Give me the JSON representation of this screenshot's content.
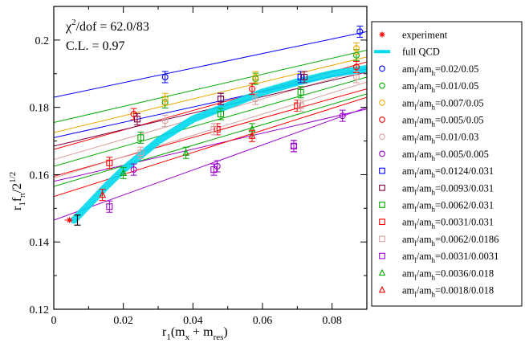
{
  "chart_data": {
    "type": "scatter",
    "title": "",
    "xlabel": "r1(mx + mres)",
    "ylabel": "r1 fπ/2^1/2",
    "xlim": [
      0,
      0.09
    ],
    "ylim": [
      0.12,
      0.21
    ],
    "xticks": [
      0,
      0.02,
      0.04,
      0.06,
      0.08
    ],
    "yticks": [
      0.12,
      0.14,
      0.16,
      0.18,
      0.2
    ],
    "xtick_labels": [
      "0",
      "0.02",
      "0.04",
      "0.06",
      "0.08"
    ],
    "ytick_labels": [
      "0.12",
      "0.14",
      "0.16",
      "0.18",
      "0.2"
    ],
    "annotations": [
      "χ²/dof = 62.0/83",
      "C.L. = 0.97"
    ],
    "experiment": {
      "name": "experiment",
      "color": "#ff0000",
      "x": 0.0045,
      "y": 0.1465
    },
    "full_qcd": {
      "name": "full QCD",
      "color": "#00d8ec",
      "x": [
        0.0058,
        0.01,
        0.015,
        0.02,
        0.03,
        0.04,
        0.05,
        0.06,
        0.07,
        0.08,
        0.09
      ],
      "y": [
        0.1465,
        0.151,
        0.1565,
        0.1615,
        0.17,
        0.1765,
        0.1805,
        0.1845,
        0.1875,
        0.19,
        0.1915
      ]
    },
    "black_point": {
      "x": 0.0068,
      "y": 0.1465,
      "err": 0.0015
    },
    "series": [
      {
        "name": "aml/amh=0.02/0.05",
        "marker": "circle",
        "color": "#0000ff",
        "x": [
          0.032,
          0.088
        ],
        "y": [
          0.189,
          0.2025
        ],
        "line": [
          0.183,
          0.2025
        ]
      },
      {
        "name": "aml/amh=0.01/0.05",
        "marker": "circle",
        "color": "#00aa00",
        "x": [
          0.032,
          0.058,
          0.087
        ],
        "y": [
          0.1815,
          0.1885,
          0.1955
        ],
        "line": [
          0.1755,
          0.197
        ]
      },
      {
        "name": "aml/amh=0.007/0.05",
        "marker": "circle",
        "color": "#f0a800",
        "x": [
          0.032,
          0.058,
          0.087
        ],
        "y": [
          0.1825,
          0.189,
          0.1975
        ],
        "line": [
          0.1725,
          0.195
        ]
      },
      {
        "name": "aml/amh=0.005/0.05",
        "marker": "circle",
        "color": "#ff0000",
        "x": [
          0.023,
          0.057,
          0.087
        ],
        "y": [
          0.178,
          0.1855,
          0.192
        ],
        "line": [
          0.1675,
          0.1935
        ]
      },
      {
        "name": "aml/amh=0.01/0.03",
        "marker": "circle",
        "color": "#d8a0a0",
        "x": [
          0.032,
          0.058,
          0.087
        ],
        "y": [
          0.176,
          0.1825,
          0.189
        ],
        "line": [
          0.1645,
          0.1915
        ]
      },
      {
        "name": "aml/amh=0.005/0.005",
        "marker": "circle",
        "color": "#9900cc",
        "x": [
          0.023,
          0.047,
          0.069,
          0.083
        ],
        "y": [
          0.1615,
          0.1625,
          0.1685,
          0.1775
        ],
        "line": [
          0.158,
          0.1795
        ]
      },
      {
        "name": "aml/amh=0.0124/0.031",
        "marker": "square",
        "color": "#0000ff",
        "x": [
          0.048,
          0.071
        ],
        "y": [
          0.1825,
          0.189
        ],
        "line": [
          0.171,
          0.1915
        ]
      },
      {
        "name": "aml/amh=0.0093/0.031",
        "marker": "square",
        "color": "#800040",
        "x": [
          0.024,
          0.048,
          0.072
        ],
        "y": [
          0.1765,
          0.1825,
          0.189
        ],
        "line": [
          0.1685,
          0.1905
        ]
      },
      {
        "name": "aml/amh=0.0062/0.031",
        "marker": "square",
        "color": "#00aa00",
        "x": [
          0.025,
          0.048,
          0.071
        ],
        "y": [
          0.171,
          0.178,
          0.1845
        ],
        "line": [
          0.1625,
          0.189
        ]
      },
      {
        "name": "aml/amh=0.0031/0.031",
        "marker": "square",
        "color": "#ff0000",
        "x": [
          0.016,
          0.047,
          0.07
        ],
        "y": [
          0.1635,
          0.1735,
          0.1805
        ],
        "line": [
          0.1595,
          0.1855
        ]
      },
      {
        "name": "aml/amh=0.0062/0.0186",
        "marker": "square",
        "color": "#d8a0a0",
        "x": [
          0.025,
          0.046,
          0.071
        ],
        "y": [
          0.1665,
          0.1735,
          0.1805
        ],
        "line": [
          0.159,
          0.1875
        ]
      },
      {
        "name": "aml/amh=0.0031/0.0031",
        "marker": "square",
        "color": "#9900cc",
        "x": [
          0.016,
          0.046,
          0.069
        ],
        "y": [
          0.1505,
          0.1615,
          0.1685
        ],
        "line": [
          0.1465,
          0.18
        ]
      },
      {
        "name": "aml/amh=0.0036/0.018",
        "marker": "triangle",
        "color": "#00aa00",
        "x": [
          0.02,
          0.038,
          0.057
        ],
        "y": [
          0.1605,
          0.1665,
          0.1735
        ],
        "line": [
          0.1565,
          0.184
        ]
      },
      {
        "name": "aml/amh=0.0018/0.018",
        "marker": "triangle",
        "color": "#ff0000",
        "x": [
          0.014,
          0.057
        ],
        "y": [
          0.154,
          0.1715
        ],
        "line": [
          0.1535,
          0.183
        ]
      }
    ],
    "legend": {
      "placement": "right",
      "entries": [
        {
          "prefix": "experiment",
          "sub1": "",
          "mid": "",
          "sub2": "",
          "suffix": ""
        },
        {
          "prefix": "full QCD",
          "sub1": "",
          "mid": "",
          "sub2": "",
          "suffix": ""
        },
        {
          "prefix": "am",
          "sub1": "l",
          "mid": "/am",
          "sub2": "h",
          "suffix": "=0.02/0.05"
        },
        {
          "prefix": "am",
          "sub1": "l",
          "mid": "/am",
          "sub2": "h",
          "suffix": "=0.01/0.05"
        },
        {
          "prefix": "am",
          "sub1": "l",
          "mid": "/am",
          "sub2": "h",
          "suffix": "=0.007/0.05"
        },
        {
          "prefix": "am",
          "sub1": "l",
          "mid": "/am",
          "sub2": "h",
          "suffix": "=0.005/0.05"
        },
        {
          "prefix": "am",
          "sub1": "l",
          "mid": "/am",
          "sub2": "h",
          "suffix": "=0.01/0.03"
        },
        {
          "prefix": "am",
          "sub1": "l",
          "mid": "/am",
          "sub2": "h",
          "suffix": "=0.005/0.005"
        },
        {
          "prefix": "am",
          "sub1": "l",
          "mid": "/am",
          "sub2": "h",
          "suffix": "=0.0124/0.031"
        },
        {
          "prefix": "am",
          "sub1": "l",
          "mid": "/am",
          "sub2": "h",
          "suffix": "=0.0093/0.031"
        },
        {
          "prefix": "am",
          "sub1": "l",
          "mid": "/am",
          "sub2": "h",
          "suffix": "=0.0062/0.031"
        },
        {
          "prefix": "am",
          "sub1": "l",
          "mid": "/am",
          "sub2": "h",
          "suffix": "=0.0031/0.031"
        },
        {
          "prefix": "am",
          "sub1": "l",
          "mid": "/am",
          "sub2": "h",
          "suffix": "=0.0062/0.0186"
        },
        {
          "prefix": "am",
          "sub1": "l",
          "mid": "/am",
          "sub2": "h",
          "suffix": "=0.0031/0.0031"
        },
        {
          "prefix": "am",
          "sub1": "l",
          "mid": "/am",
          "sub2": "h",
          "suffix": "=0.0036/0.018"
        },
        {
          "prefix": "am",
          "sub1": "l",
          "mid": "/am",
          "sub2": "h",
          "suffix": "=0.0018/0.018"
        }
      ]
    },
    "xlabel_parts": {
      "r": "r",
      "r_sub": "1",
      "open": "(m",
      "mx_sub": "x",
      "plus": " + m",
      "mres_sub": "res",
      "close": ")"
    },
    "ylabel_parts": {
      "r": "r",
      "r_sub": "1",
      "f": "f",
      "f_sub": "π",
      "slash": "/2",
      "exp": "1/2"
    },
    "anno_parts": {
      "chi": "χ",
      "chi_sup": "2",
      "rest": "/dof = 62.0/83",
      "cl": "C.L. = 0.97"
    }
  }
}
